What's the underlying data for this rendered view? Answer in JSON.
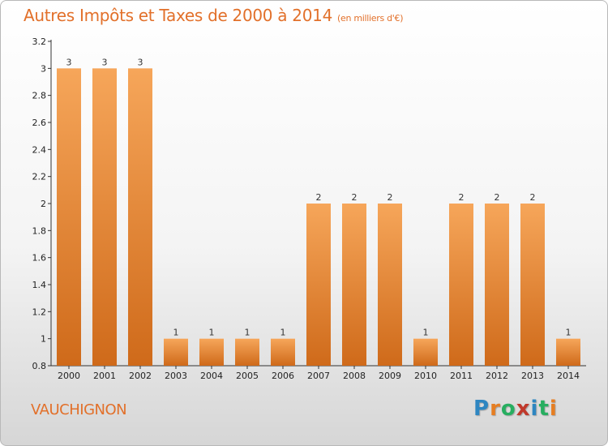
{
  "title": "Autres Impôts et Taxes de 2000 à 2014",
  "unit": "(en milliers d'€)",
  "town": "VAUCHIGNON",
  "logo": {
    "text": "Proxiti",
    "colors": [
      "#2e86c1",
      "#e67e22",
      "#27ae60",
      "#c0392b",
      "#2e86c1",
      "#27ae60",
      "#e67e22"
    ]
  },
  "colors": {
    "accent": "#e2702a",
    "bar_top": "#f6a65a",
    "bar_bottom": "#cf6a1a"
  },
  "chart_data": {
    "type": "bar",
    "categories": [
      "2000",
      "2001",
      "2002",
      "2003",
      "2004",
      "2005",
      "2006",
      "2007",
      "2008",
      "2009",
      "2010",
      "2011",
      "2012",
      "2013",
      "2014"
    ],
    "values": [
      3,
      3,
      3,
      1,
      1,
      1,
      1,
      2,
      2,
      2,
      1,
      2,
      2,
      2,
      1
    ],
    "data_labels": [
      "3",
      "3",
      "3",
      "1",
      "1",
      "1",
      "1",
      "2",
      "2",
      "2",
      "1",
      "2",
      "2",
      "2",
      "1"
    ],
    "ylim": [
      0.8,
      3.2
    ],
    "yticks": [
      0.8,
      1,
      1.2,
      1.4,
      1.6,
      1.8,
      2,
      2.2,
      2.4,
      2.6,
      2.8,
      3,
      3.2
    ],
    "ytick_labels": [
      "0.8",
      "1",
      "1.2",
      "1.4",
      "1.6",
      "1.8",
      "2",
      "2.2",
      "2.4",
      "2.6",
      "2.8",
      "3",
      "3.2"
    ],
    "grid": false,
    "xlabel": "",
    "ylabel": ""
  }
}
